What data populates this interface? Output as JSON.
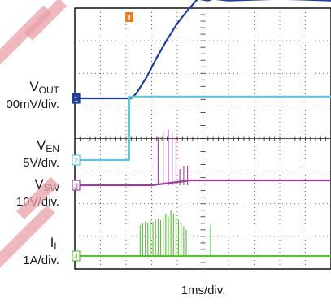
{
  "chart_data": {
    "type": "line",
    "title": "",
    "x_unit_label": "1ms/div.",
    "x_divisions": 10,
    "y_divisions": 8,
    "grid": true,
    "trigger_marker": "T",
    "series": [
      {
        "id": "vout",
        "name_main": "V",
        "name_sub": "OUT",
        "scale": "00mV/div.",
        "channel": "1",
        "color": "#1f3f9a",
        "x": [
          0,
          2.2,
          2.4,
          2.8,
          3.2,
          3.6,
          4.0,
          4.4,
          4.8,
          5.2,
          5.4,
          6.0,
          8.0,
          10
        ],
        "y": [
          0,
          0,
          0.15,
          0.65,
          1.25,
          1.8,
          2.3,
          2.7,
          3.05,
          3.0,
          3.05,
          3.0,
          3.05,
          3.0
        ]
      },
      {
        "id": "ven",
        "name_main": "V",
        "name_sub": "EN",
        "scale": "5V/div.",
        "channel": "2",
        "color": "#5fc6d8",
        "x": [
          0,
          2.12,
          2.13,
          10
        ],
        "y": [
          0,
          0,
          1.95,
          1.95
        ]
      },
      {
        "id": "vsw",
        "name_main": "V",
        "name_sub": "SW",
        "scale": "10V/div.",
        "channel": "3",
        "color": "#9b3f9e",
        "x": [
          0,
          3.0,
          4.5,
          10
        ],
        "y": [
          0,
          0,
          0.15,
          0.15
        ],
        "pulses_x": [
          3.25,
          3.45,
          3.65,
          3.8,
          3.95,
          4.1,
          4.25,
          4.4
        ],
        "pulses_y": [
          1.5,
          1.6,
          1.7,
          1.6,
          1.5,
          0.5,
          0.6,
          0.6
        ]
      },
      {
        "id": "il",
        "name_main": "I",
        "name_sub": "L",
        "scale": "1A/div.",
        "channel": "4",
        "color": "#5bbf3a",
        "x": [
          0,
          10
        ],
        "y": [
          0,
          0
        ],
        "pulses_x": [
          2.55,
          2.65,
          2.75,
          2.85,
          2.95,
          3.05,
          3.15,
          3.25,
          3.35,
          3.45,
          3.55,
          3.65,
          3.75,
          3.85,
          3.95,
          4.05,
          4.15,
          4.25,
          4.35,
          5.3
        ],
        "pulses_y": [
          0.95,
          1.0,
          1.05,
          1.0,
          1.1,
          1.05,
          1.1,
          1.15,
          1.1,
          1.2,
          1.3,
          1.2,
          1.4,
          1.3,
          1.2,
          1.1,
          1.0,
          0.9,
          0.8,
          0.95
        ]
      }
    ]
  }
}
